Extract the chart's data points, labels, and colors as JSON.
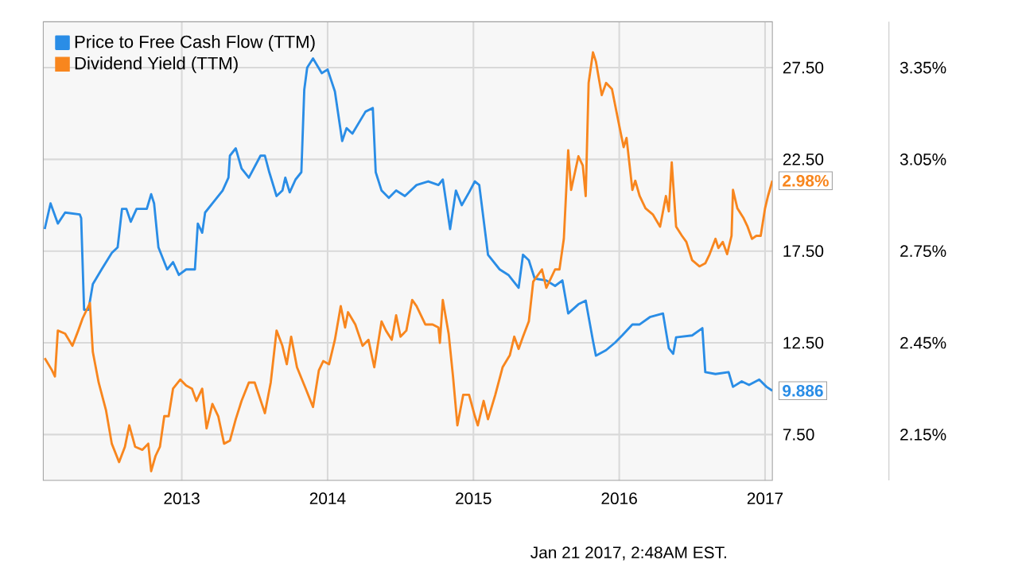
{
  "chart_data": {
    "type": "line",
    "xlim": [
      2012.05,
      2017.05
    ],
    "xticks": [
      2013,
      2014,
      2015,
      2016,
      2017
    ],
    "ylim": [
      5,
      30
    ],
    "yticks": [
      {
        "value": 7.5,
        "label": "7.50"
      },
      {
        "value": 12.5,
        "label": "12.50"
      },
      {
        "value": 17.5,
        "label": "17.50"
      },
      {
        "value": 22.5,
        "label": "22.50"
      },
      {
        "value": 27.5,
        "label": "27.50"
      }
    ],
    "y2lim": [
      2,
      3.5
    ],
    "y2ticks": [
      {
        "value": 2.15,
        "label": "2.15%"
      },
      {
        "value": 2.45,
        "label": "2.45%"
      },
      {
        "value": 2.75,
        "label": "2.75%"
      },
      {
        "value": 3.05,
        "label": "3.05%"
      },
      {
        "value": 3.35,
        "label": "3.35%"
      }
    ],
    "grid": true,
    "legend": "top left",
    "annotations": [
      "Jan 21 2017, 2:48AM EST."
    ],
    "series": [
      {
        "name": "Price to Free Cash Flow (TTM)",
        "color": "#2a8de6",
        "x": [
          2012.06,
          2012.1,
          2012.15,
          2012.2,
          2012.3,
          2012.31,
          2012.33,
          2012.36,
          2012.39,
          2012.45,
          2012.52,
          2012.56,
          2012.59,
          2012.62,
          2012.65,
          2012.69,
          2012.76,
          2012.79,
          2012.81,
          2012.84,
          2012.9,
          2012.94,
          2012.98,
          2013.03,
          2013.09,
          2013.11,
          2013.14,
          2013.16,
          2013.23,
          2013.28,
          2013.32,
          2013.33,
          2013.37,
          2013.41,
          2013.46,
          2013.54,
          2013.57,
          2013.6,
          2013.65,
          2013.69,
          2013.71,
          2013.74,
          2013.78,
          2013.82,
          2013.84,
          2013.86,
          2013.9,
          2013.96,
          2014.0,
          2014.05,
          2014.1,
          2014.13,
          2014.17,
          2014.26,
          2014.31,
          2014.33,
          2014.37,
          2014.42,
          2014.47,
          2014.53,
          2014.61,
          2014.69,
          2014.76,
          2014.79,
          2014.84,
          2014.88,
          2014.92,
          2014.97,
          2015.01,
          2015.04,
          2015.1,
          2015.18,
          2015.24,
          2015.27,
          2015.31,
          2015.34,
          2015.38,
          2015.42,
          2015.5,
          2015.56,
          2015.61,
          2015.65,
          2015.72,
          2015.77,
          2015.82,
          2015.84,
          2015.91,
          2015.97,
          2016.02,
          2016.09,
          2016.14,
          2016.21,
          2016.3,
          2016.34,
          2016.37,
          2016.39,
          2016.5,
          2016.57,
          2016.59,
          2016.66,
          2016.75,
          2016.78,
          2016.84,
          2016.89,
          2016.96,
          2017.01,
          2017.05
        ],
        "values": [
          18.7,
          20.1,
          19.0,
          19.6,
          19.5,
          19.3,
          14.3,
          14.3,
          15.7,
          16.5,
          17.4,
          17.7,
          19.8,
          19.8,
          19.1,
          19.8,
          19.8,
          20.6,
          20.1,
          17.7,
          16.5,
          16.9,
          16.2,
          16.5,
          16.5,
          19.0,
          18.5,
          19.6,
          20.3,
          20.8,
          21.5,
          22.7,
          23.1,
          22.0,
          21.5,
          22.7,
          22.7,
          21.8,
          20.5,
          20.8,
          21.5,
          20.7,
          21.4,
          21.8,
          26.3,
          27.5,
          28.0,
          27.2,
          27.4,
          26.2,
          23.5,
          24.2,
          23.9,
          25.1,
          25.3,
          21.8,
          20.8,
          20.4,
          20.8,
          20.5,
          21.1,
          21.3,
          21.1,
          21.4,
          18.7,
          20.8,
          20.0,
          20.7,
          21.3,
          21.1,
          17.3,
          16.5,
          16.2,
          15.9,
          15.5,
          17.3,
          17.0,
          16.0,
          15.9,
          15.6,
          15.9,
          14.1,
          14.6,
          14.8,
          12.6,
          11.8,
          12.1,
          12.5,
          12.9,
          13.5,
          13.5,
          13.9,
          14.1,
          12.2,
          11.9,
          12.8,
          12.9,
          13.3,
          10.9,
          10.8,
          10.9,
          10.1,
          10.4,
          10.2,
          10.5,
          10.1,
          9.886
        ],
        "value_labels": [
          null,
          null,
          null,
          null,
          null,
          null,
          null,
          null,
          null,
          null,
          null,
          null,
          null,
          null,
          null,
          null,
          null,
          null,
          null,
          null,
          null,
          null,
          null,
          null,
          null,
          null,
          null,
          null,
          null,
          null,
          null,
          null,
          null,
          null,
          null,
          null,
          null,
          null,
          null,
          null,
          null,
          null,
          null,
          null,
          null,
          null,
          null,
          null,
          null,
          null,
          null,
          null,
          null,
          null,
          null,
          null,
          null,
          null,
          null,
          null,
          null,
          null,
          null,
          null,
          null,
          null,
          null,
          null,
          null,
          null,
          null,
          null,
          null,
          null,
          null,
          null,
          null,
          null,
          null,
          null,
          null,
          null,
          null,
          null,
          null,
          null,
          null,
          null,
          null,
          null,
          null,
          null,
          null,
          null,
          null,
          null,
          null,
          null,
          null,
          null,
          null,
          null,
          null,
          null,
          null,
          null,
          "9.886"
        ]
      },
      {
        "name": "Dividend Yield (TTM)",
        "color": "#f8861e",
        "axis": "y2",
        "x": [
          2012.06,
          2012.11,
          2012.13,
          2012.15,
          2012.2,
          2012.25,
          2012.29,
          2012.32,
          2012.37,
          2012.39,
          2012.43,
          2012.48,
          2012.52,
          2012.57,
          2012.61,
          2012.64,
          2012.68,
          2012.73,
          2012.77,
          2012.79,
          2012.82,
          2012.85,
          2012.88,
          2012.91,
          2012.94,
          2012.99,
          2013.03,
          2013.07,
          2013.1,
          2013.14,
          2013.17,
          2013.21,
          2013.25,
          2013.29,
          2013.33,
          2013.37,
          2013.41,
          2013.46,
          2013.5,
          2013.57,
          2013.61,
          2013.65,
          2013.69,
          2013.72,
          2013.75,
          2013.79,
          2013.85,
          2013.9,
          2013.94,
          2013.97,
          2014.01,
          2014.05,
          2014.09,
          2014.12,
          2014.14,
          2014.19,
          2014.24,
          2014.28,
          2014.32,
          2014.37,
          2014.4,
          2014.44,
          2014.47,
          2014.5,
          2014.54,
          2014.58,
          2014.61,
          2014.67,
          2014.72,
          2014.76,
          2014.77,
          2014.79,
          2014.83,
          2014.86,
          2014.89,
          2014.93,
          2014.97,
          2015.01,
          2015.03,
          2015.07,
          2015.1,
          2015.15,
          2015.2,
          2015.25,
          2015.28,
          2015.31,
          2015.34,
          2015.38,
          2015.41,
          2015.47,
          2015.5,
          2015.56,
          2015.59,
          2015.62,
          2015.65,
          2015.67,
          2015.72,
          2015.75,
          2015.77,
          2015.79,
          2015.82,
          2015.84,
          2015.88,
          2015.91,
          2015.95,
          2016.0,
          2016.03,
          2016.05,
          2016.09,
          2016.11,
          2016.14,
          2016.18,
          2016.23,
          2016.28,
          2016.32,
          2016.34,
          2016.36,
          2016.39,
          2016.43,
          2016.46,
          2016.5,
          2016.55,
          2016.59,
          2016.62,
          2016.66,
          2016.68,
          2016.71,
          2016.74,
          2016.77,
          2016.78,
          2016.81,
          2016.85,
          2016.88,
          2016.91,
          2016.94,
          2016.97,
          2017.0,
          2017.02,
          2017.05
        ],
        "values": [
          2.4,
          2.36,
          2.34,
          2.49,
          2.48,
          2.44,
          2.49,
          2.53,
          2.58,
          2.42,
          2.32,
          2.23,
          2.12,
          2.06,
          2.11,
          2.18,
          2.11,
          2.1,
          2.12,
          2.03,
          2.08,
          2.11,
          2.21,
          2.21,
          2.3,
          2.33,
          2.31,
          2.3,
          2.26,
          2.3,
          2.17,
          2.25,
          2.21,
          2.12,
          2.13,
          2.2,
          2.26,
          2.32,
          2.32,
          2.22,
          2.32,
          2.49,
          2.44,
          2.38,
          2.47,
          2.37,
          2.3,
          2.24,
          2.36,
          2.39,
          2.38,
          2.46,
          2.57,
          2.5,
          2.55,
          2.51,
          2.44,
          2.46,
          2.37,
          2.52,
          2.49,
          2.46,
          2.54,
          2.47,
          2.49,
          2.59,
          2.57,
          2.51,
          2.51,
          2.5,
          2.45,
          2.59,
          2.48,
          2.34,
          2.18,
          2.28,
          2.28,
          2.21,
          2.18,
          2.26,
          2.2,
          2.28,
          2.37,
          2.41,
          2.47,
          2.43,
          2.47,
          2.52,
          2.65,
          2.69,
          2.63,
          2.69,
          2.69,
          2.79,
          3.08,
          2.95,
          3.06,
          3.03,
          2.93,
          3.3,
          3.4,
          3.37,
          3.26,
          3.3,
          3.28,
          3.16,
          3.09,
          3.12,
          2.95,
          2.98,
          2.93,
          2.89,
          2.87,
          2.83,
          2.93,
          2.88,
          3.04,
          2.83,
          2.8,
          2.78,
          2.72,
          2.7,
          2.71,
          2.74,
          2.79,
          2.76,
          2.78,
          2.74,
          2.8,
          2.95,
          2.89,
          2.86,
          2.83,
          2.79,
          2.8,
          2.8,
          2.89,
          2.93,
          2.98
        ],
        "value_labels": [
          null,
          null,
          null,
          null,
          null,
          null,
          null,
          null,
          null,
          null,
          null,
          null,
          null,
          null,
          null,
          null,
          null,
          null,
          null,
          null,
          null,
          null,
          null,
          null,
          null,
          null,
          null,
          null,
          null,
          null,
          null,
          null,
          null,
          null,
          null,
          null,
          null,
          null,
          null,
          null,
          null,
          null,
          null,
          null,
          null,
          null,
          null,
          null,
          null,
          null,
          null,
          null,
          null,
          null,
          null,
          null,
          null,
          null,
          null,
          null,
          null,
          null,
          null,
          null,
          null,
          null,
          null,
          null,
          null,
          null,
          null,
          null,
          null,
          null,
          null,
          null,
          null,
          null,
          null,
          null,
          null,
          null,
          null,
          null,
          null,
          null,
          null,
          null,
          null,
          null,
          null,
          null,
          null,
          null,
          null,
          null,
          null,
          null,
          null,
          null,
          null,
          null,
          null,
          null,
          null,
          null,
          null,
          null,
          null,
          null,
          null,
          null,
          null,
          null,
          null,
          null,
          null,
          null,
          null,
          null,
          null,
          null,
          null,
          null,
          null,
          null,
          null,
          null,
          null,
          null,
          null,
          null,
          null,
          null,
          null,
          null,
          null,
          null,
          "2.98%"
        ]
      }
    ]
  }
}
